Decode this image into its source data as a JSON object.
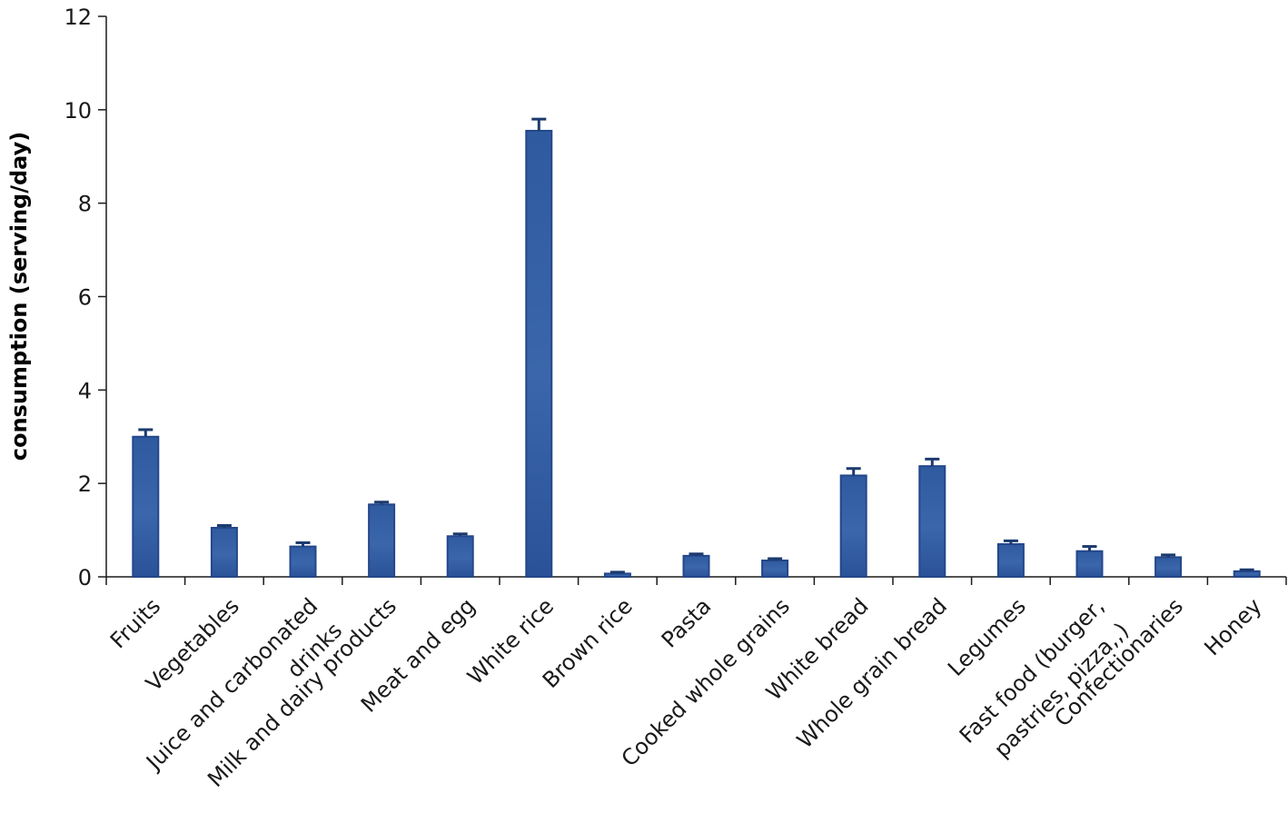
{
  "chart_data": {
    "type": "bar",
    "title": "",
    "xlabel": "",
    "ylabel": "consumption (serving/day)",
    "ylim": [
      0,
      12
    ],
    "yticks": [
      0,
      2,
      4,
      6,
      8,
      10,
      12
    ],
    "grid": false,
    "legend": "none",
    "categories": [
      [
        "Fruits"
      ],
      [
        "Vegetables"
      ],
      [
        "Juice and carbonated",
        "drinks"
      ],
      [
        "Milk and dairy products"
      ],
      [
        "Meat and egg"
      ],
      [
        "White rice"
      ],
      [
        "Brown rice"
      ],
      [
        "Pasta"
      ],
      [
        "Cooked whole grains"
      ],
      [
        "White bread"
      ],
      [
        "Whole grain bread"
      ],
      [
        "Legumes"
      ],
      [
        "Fast food (burger,",
        "pastries, pizza,,)"
      ],
      [
        "Confectionaries"
      ],
      [
        "Honey"
      ]
    ],
    "values": [
      3.0,
      1.05,
      0.65,
      1.55,
      0.87,
      9.55,
      0.07,
      0.45,
      0.35,
      2.17,
      2.37,
      0.7,
      0.55,
      0.42,
      0.12
    ],
    "errors": [
      0.15,
      0.05,
      0.08,
      0.05,
      0.05,
      0.25,
      0.03,
      0.04,
      0.04,
      0.15,
      0.15,
      0.07,
      0.1,
      0.05,
      0.03
    ],
    "colors": {
      "bar_fill": "#2f5aa0",
      "bar_light": "#b7c8e4",
      "bar_stroke": "#24478a",
      "error_bar": "#1c3a6e",
      "axis": "#1a1a1a"
    }
  }
}
